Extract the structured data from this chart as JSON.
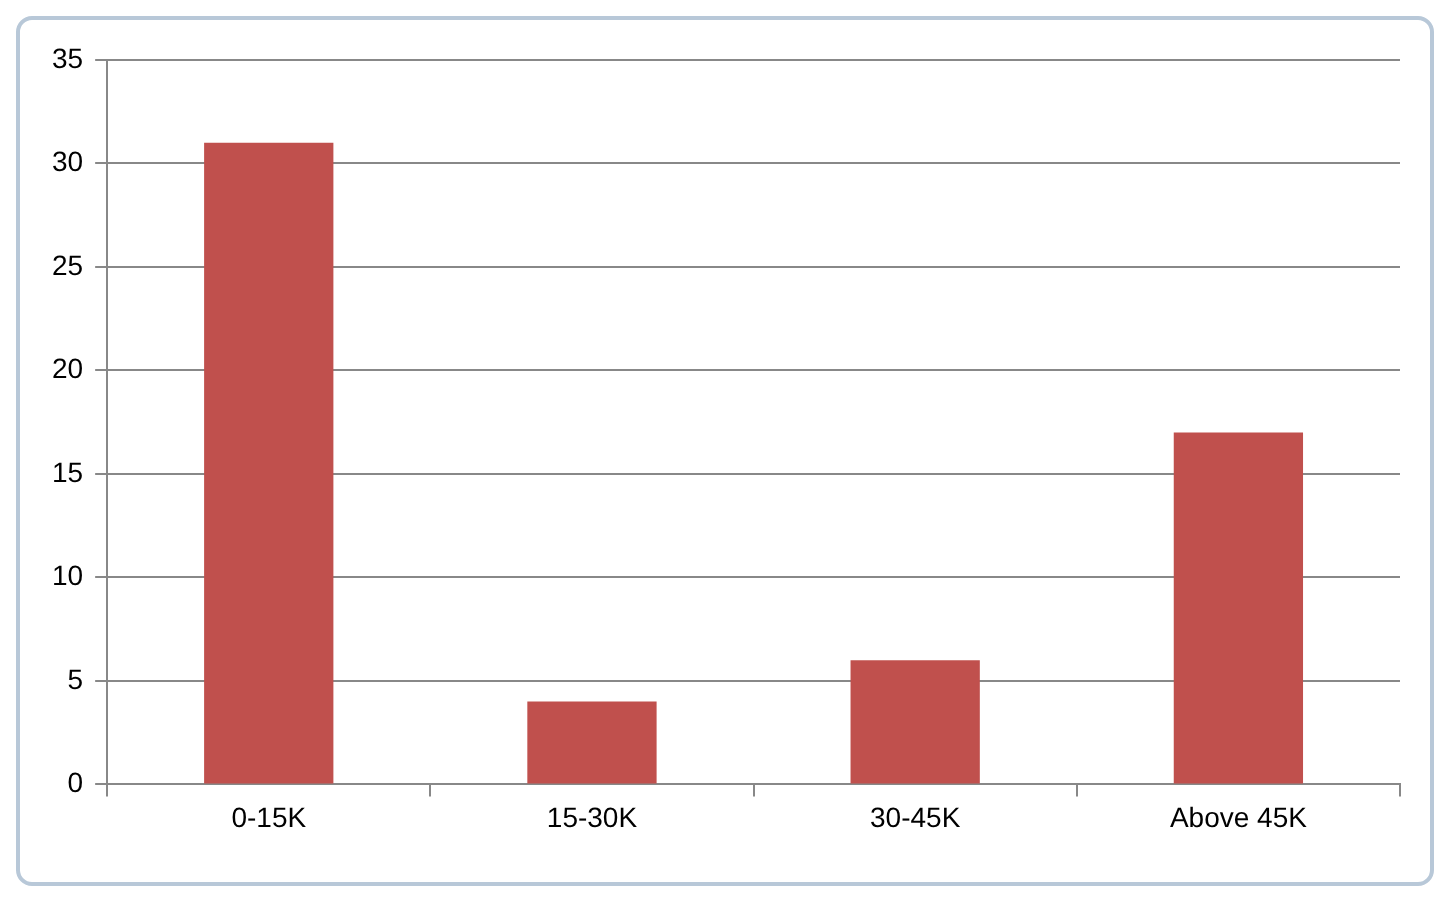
{
  "chart_data": {
    "type": "bar",
    "categories": [
      "0-15K",
      "15-30K",
      "30-45K",
      "Above 45K"
    ],
    "values": [
      31,
      4,
      6,
      17
    ],
    "color": "#c0504d",
    "ylim": [
      0,
      35
    ],
    "yticks": [
      0,
      5,
      10,
      15,
      20,
      25,
      30,
      35
    ],
    "grid": "y",
    "legend": false
  }
}
